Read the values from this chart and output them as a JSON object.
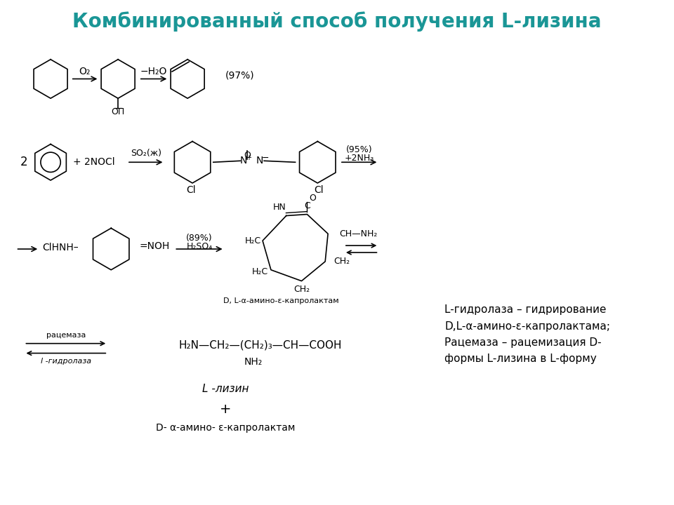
{
  "title": "Комбинированный способ получения L-лизина",
  "title_color": "#1a9696",
  "title_fontsize": 20,
  "bg_color": "#ffffff",
  "text_color": "#000000",
  "annotation_text": "L-гидролаза – гидрирование\nD,L-α-амино-ε-капролактама;\nРацемаза – рацемизация D-\nформы L-лизина в L-форму",
  "label_lysine": "L -лизин",
  "label_d_capro": "D- α-амино- ε-капролактам",
  "label_dl_capro": "D, L-α-амино-ε-капролактам",
  "label_racemate": "рацемаза",
  "label_hydrolase": "l -гидролаза",
  "label_97": "(97%)",
  "label_95": "(95%)\n+2NH₃",
  "label_89": "(89%)\nH₂SO₄",
  "label_o2": "O₂",
  "label_h2o": "−H₂O",
  "label_so2": "SO₂(ж)",
  "label_2nocl": "+ 2NOCl",
  "label_clhnh": "ClHNH–",
  "label_2": "2",
  "label_cl1": "Cl",
  "label_cl2": "Cl",
  "label_noh": "=NOH",
  "label_h2n": "H₂N—CH₂—(CH₂)₃—CH—COOH",
  "label_nh2_bot": "NH₂",
  "label_on": "OП"
}
